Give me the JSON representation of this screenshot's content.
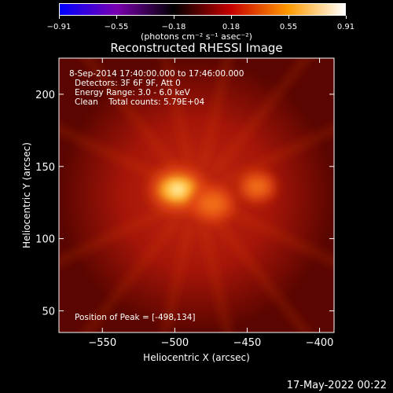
{
  "colorbar": {
    "tick_labels": [
      "−0.91",
      "−0.55",
      "−0.18",
      "0.18",
      "0.55",
      "0.91"
    ],
    "units": "(photons cm⁻² s⁻¹ asec⁻²)",
    "colormap": [
      "#0000ff",
      "#7a00b0",
      "#000000",
      "#c80000",
      "#ff9a00",
      "#ffffff"
    ]
  },
  "info": {
    "date_range": "8-Sep-2014 17:40:00.000 to 17:46:00.000",
    "detectors": "Detectors: 3F 6F 9F, Att 0",
    "energy": "Energy Range: 3.0 - 6.0 keV",
    "clean": "Clean    Total counts: 5.79E+04",
    "peak": "Position of Peak = [-498,134]"
  },
  "timestamp": "17-May-2022 00:22",
  "chart_data": {
    "type": "heatmap",
    "title": "Reconstructed RHESSI Image",
    "xlabel": "Heliocentric X (arcsec)",
    "ylabel": "Heliocentric Y (arcsec)",
    "xlim": [
      -580,
      -390
    ],
    "ylim": [
      35,
      225
    ],
    "x_ticks": [
      -550,
      -500,
      -450,
      -400
    ],
    "x_tick_labels": [
      "−550",
      "−500",
      "−450",
      "−400"
    ],
    "y_ticks": [
      50,
      100,
      150,
      200
    ],
    "y_tick_labels": [
      "50",
      "100",
      "150",
      "200"
    ],
    "sources": [
      {
        "x": -498,
        "y": 134,
        "intensity": 1.0
      },
      {
        "x": -474,
        "y": 124,
        "intensity": 0.7
      },
      {
        "x": -443,
        "y": 136,
        "intensity": 0.55
      }
    ],
    "background_intensity": 0.28
  }
}
